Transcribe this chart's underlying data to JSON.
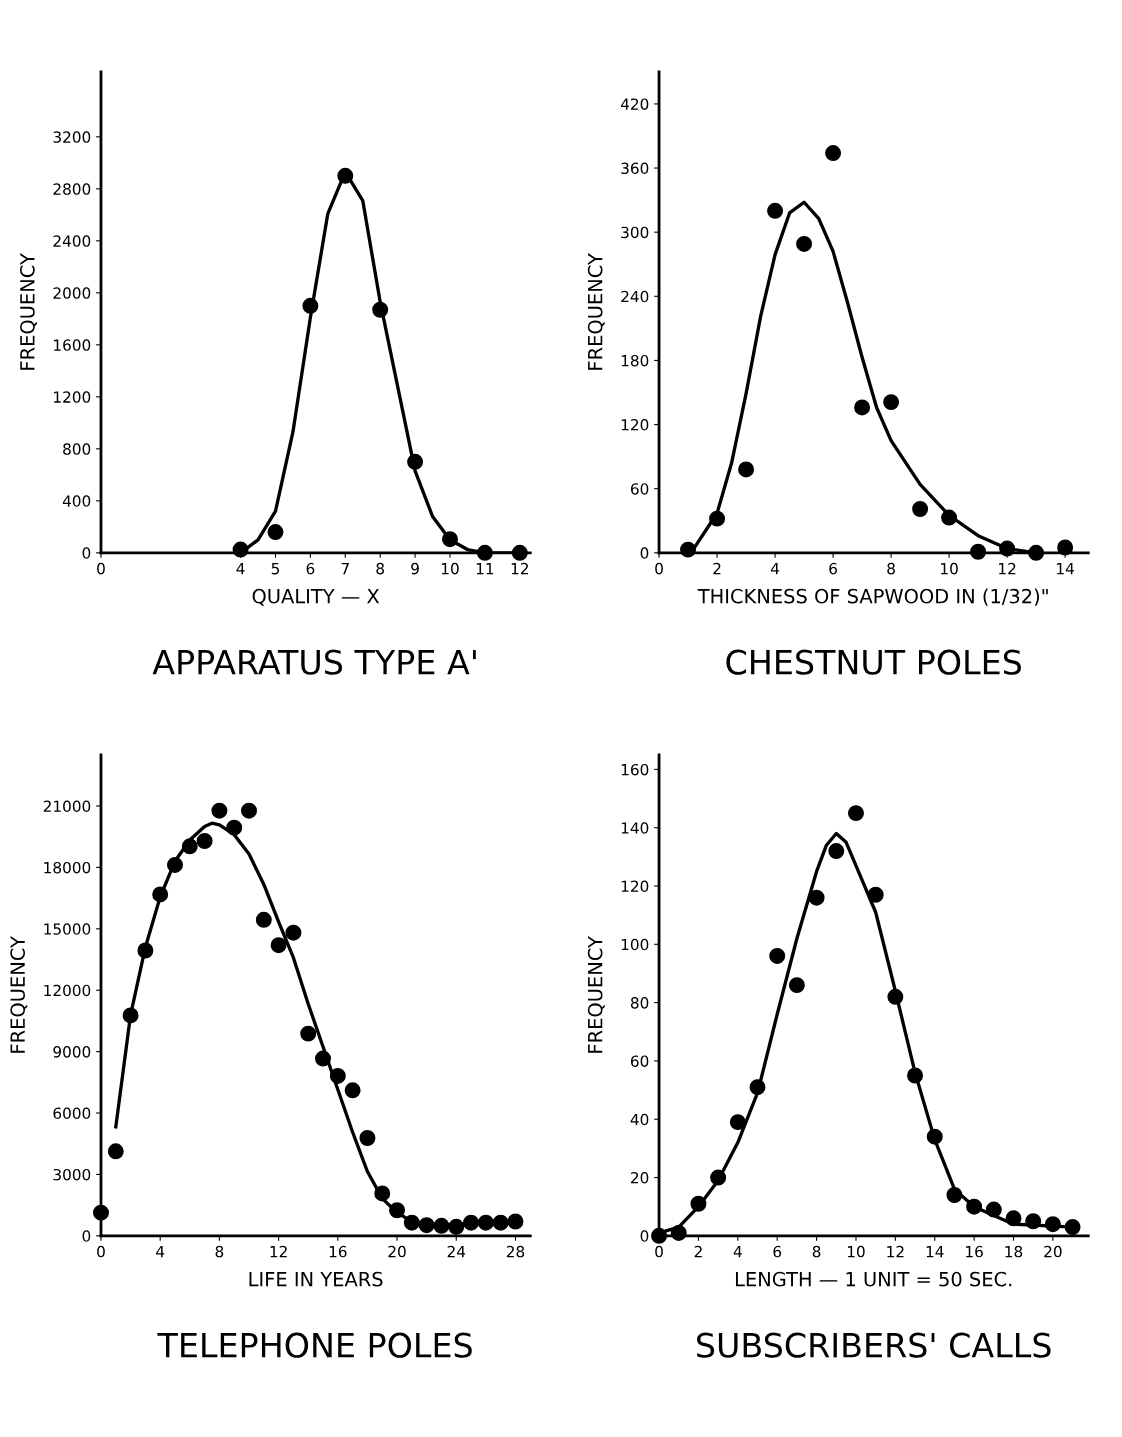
{
  "chart_data": [
    {
      "type": "scatter",
      "title": "APPARATUS TYPE A'",
      "xlabel": "QUALITY — X",
      "ylabel": "FREQUENCY",
      "xlim": [
        0,
        12.3
      ],
      "ylim": [
        0,
        3700
      ],
      "xticks": [
        0,
        4,
        5,
        6,
        7,
        8,
        9,
        10,
        11,
        12
      ],
      "yticks": [
        0,
        400,
        800,
        1200,
        1600,
        2000,
        2400,
        2800,
        3200
      ],
      "grid": false,
      "series": [
        {
          "color": "#000000",
          "marker": "circle",
          "x": [
            4,
            5,
            6,
            7,
            8,
            9,
            10,
            11,
            12
          ],
          "values": [
            25,
            160,
            1900,
            2900,
            1870,
            700,
            105,
            0,
            0
          ]
        },
        {
          "type": "line",
          "color": "#000000",
          "marker": "none",
          "line_style": "solid",
          "x": [
            4,
            4.5,
            5,
            5.5,
            6,
            6.5,
            7,
            7.5,
            8,
            8.5,
            9,
            9.5,
            10,
            10.5,
            11,
            12
          ],
          "values": [
            0,
            100,
            320,
            930,
            1810,
            2610,
            2930,
            2710,
            1930,
            1280,
            630,
            280,
            100,
            25,
            0,
            0
          ]
        }
      ]
    },
    {
      "type": "scatter",
      "title": "CHESTNUT POLES",
      "xlabel": "THICKNESS OF SAPWOOD IN (1/32)\"",
      "ylabel": "FREQUENCY",
      "xlim": [
        0,
        14.8
      ],
      "ylim": [
        0,
        450
      ],
      "xticks": [
        0,
        2,
        4,
        6,
        8,
        10,
        12,
        14
      ],
      "yticks": [
        0,
        60,
        120,
        180,
        240,
        300,
        360,
        420
      ],
      "grid": false,
      "series": [
        {
          "color": "#000000",
          "marker": "circle",
          "x": [
            1,
            2,
            3,
            4,
            5,
            6,
            7,
            8,
            9,
            10,
            11,
            12,
            13,
            14
          ],
          "values": [
            3,
            32,
            78,
            320,
            289,
            374,
            136,
            141,
            41,
            33,
            1,
            4,
            0,
            5
          ]
        },
        {
          "type": "line",
          "color": "#000000",
          "marker": "none",
          "line_style": "solid",
          "x": [
            1.1,
            2,
            2.5,
            3,
            3.5,
            4,
            4.5,
            5,
            5.5,
            6,
            6.5,
            7,
            7.5,
            8,
            9,
            10,
            11,
            12,
            13
          ],
          "values": [
            0,
            37,
            84,
            149,
            221,
            279,
            318,
            328,
            313,
            282,
            234,
            183,
            136,
            105,
            64,
            35,
            16,
            4,
            0
          ]
        }
      ]
    },
    {
      "type": "scatter",
      "title": "TELEPHONE POLES",
      "xlabel": "LIFE IN YEARS",
      "ylabel": "FREQUENCY",
      "xlim": [
        0,
        29
      ],
      "ylim": [
        0,
        23500
      ],
      "xticks": [
        0,
        4,
        8,
        12,
        16,
        20,
        24,
        28
      ],
      "yticks": [
        0,
        3000,
        6000,
        9000,
        12000,
        15000,
        18000,
        21000
      ],
      "grid": false,
      "series": [
        {
          "color": "#000000",
          "marker": "circle",
          "x": [
            0,
            1,
            2,
            3,
            4,
            5,
            6,
            7,
            8,
            9,
            10,
            11,
            12,
            13,
            14,
            15,
            16,
            17,
            18,
            19,
            20,
            21,
            22,
            23,
            24,
            25,
            26,
            27,
            28
          ],
          "values": [
            1130,
            4130,
            10770,
            13940,
            16680,
            18120,
            19030,
            19290,
            20770,
            19940,
            20770,
            15440,
            14200,
            14810,
            9880,
            8660,
            7810,
            7110,
            4780,
            2070,
            1250,
            640,
            520,
            490,
            440,
            640,
            640,
            640,
            700
          ]
        },
        {
          "type": "line",
          "color": "#000000",
          "marker": "none",
          "line_style": "solid",
          "x": [
            1,
            2,
            3,
            4,
            5,
            6,
            7,
            7.5,
            8,
            9,
            10,
            11,
            12,
            13,
            14,
            15,
            16,
            17,
            18,
            19,
            20,
            21,
            22,
            24,
            28
          ],
          "values": [
            5320,
            10800,
            14100,
            16560,
            18300,
            19340,
            20000,
            20160,
            20080,
            19600,
            18650,
            17170,
            15340,
            13590,
            11330,
            9240,
            7150,
            5060,
            3140,
            1830,
            1130,
            700,
            520,
            560,
            700
          ]
        }
      ]
    },
    {
      "type": "scatter",
      "title": "SUBSCRIBERS' CALLS",
      "xlabel": "LENGTH — 1 UNIT = 50 SEC.",
      "ylabel": "FREQUENCY",
      "xlim": [
        0,
        21.8
      ],
      "ylim": [
        0,
        165
      ],
      "xticks": [
        0,
        2,
        4,
        6,
        8,
        10,
        12,
        14,
        16,
        18,
        20
      ],
      "yticks": [
        0,
        20,
        40,
        60,
        80,
        100,
        120,
        140,
        160
      ],
      "grid": false,
      "series": [
        {
          "color": "#000000",
          "marker": "circle",
          "x": [
            0,
            1,
            2,
            3,
            4,
            5,
            6,
            7,
            8,
            9,
            10,
            11,
            12,
            13,
            14,
            15,
            16,
            17,
            18,
            19,
            20,
            21
          ],
          "values": [
            0,
            1,
            11,
            20,
            39,
            51,
            96,
            86,
            116,
            132,
            145,
            117,
            82,
            55,
            34,
            14,
            10,
            9,
            6,
            5,
            4,
            3
          ]
        },
        {
          "type": "line",
          "color": "#000000",
          "marker": "none",
          "line_style": "solid",
          "x": [
            0,
            1,
            2,
            3,
            4,
            5,
            6,
            7,
            8,
            8.5,
            9,
            9.5,
            10,
            11,
            12,
            13,
            14,
            15,
            16,
            17,
            18,
            21
          ],
          "values": [
            1,
            3,
            10,
            19,
            32,
            49,
            76,
            102,
            125,
            134,
            138,
            135,
            127,
            111,
            84,
            56,
            33,
            16,
            10,
            7,
            4,
            3
          ]
        }
      ]
    }
  ]
}
